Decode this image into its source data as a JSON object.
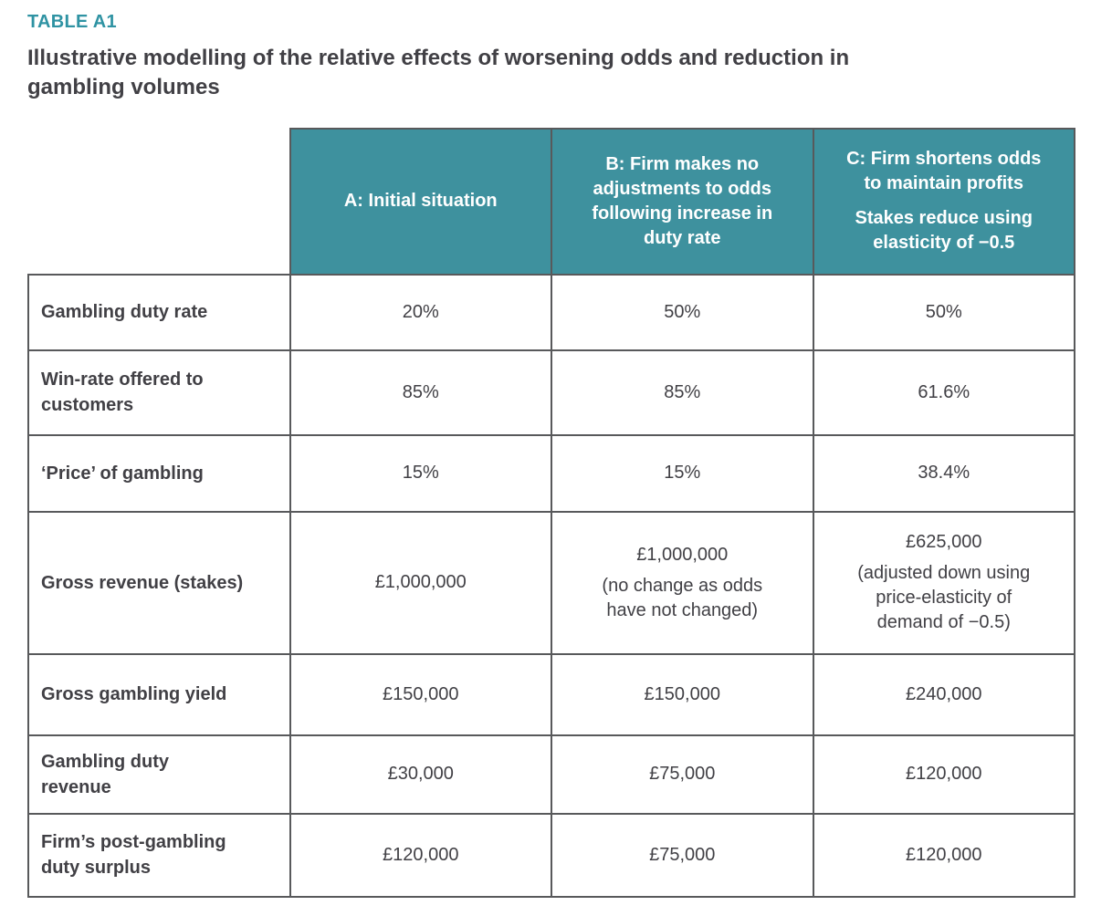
{
  "doc": {
    "tag": "TABLE A1",
    "title": "Illustrative modelling of the relative effects of worsening odds and reduction in\ngambling volumes"
  },
  "colors": {
    "accent_teal": "#3E919E",
    "tag_teal": "#2F93A3",
    "border_gray": "#58595B",
    "text_dark": "#414045",
    "header_text": "#FFFFFF"
  },
  "table": {
    "columns": [
      {
        "label": "A: Initial situation",
        "sublabel": ""
      },
      {
        "label": "B: Firm makes no\nadjustments to odds\nfollowing increase in\nduty rate",
        "sublabel": ""
      },
      {
        "label": "C: Firm shortens odds\nto maintain profits",
        "sublabel": "Stakes reduce using\nelasticity of −0.5"
      }
    ],
    "rows": [
      {
        "label": "Gambling duty rate",
        "values": [
          "20%",
          "50%",
          "50%"
        ]
      },
      {
        "label": "Win-rate offered to\ncustomers",
        "values": [
          "85%",
          "85%",
          "61.6%"
        ]
      },
      {
        "label": "‘Price’ of gambling",
        "values": [
          "15%",
          "15%",
          "38.4%"
        ]
      },
      {
        "label": "Gross revenue (stakes)",
        "values": [
          "£1,000,000",
          "£1,000,000",
          "£625,000"
        ],
        "notes": [
          "",
          "(no change as odds\nhave not changed)",
          "(adjusted down using\nprice-elasticity of\ndemand of −0.5)"
        ]
      },
      {
        "label": "Gross gambling yield",
        "values": [
          "£150,000",
          "£150,000",
          "£240,000"
        ]
      },
      {
        "label": "Gambling duty\nrevenue",
        "values": [
          "£30,000",
          "£75,000",
          "£120,000"
        ]
      },
      {
        "label": "Firm’s post-gambling\nduty surplus",
        "values": [
          "£120,000",
          "£75,000",
          "£120,000"
        ]
      }
    ]
  }
}
